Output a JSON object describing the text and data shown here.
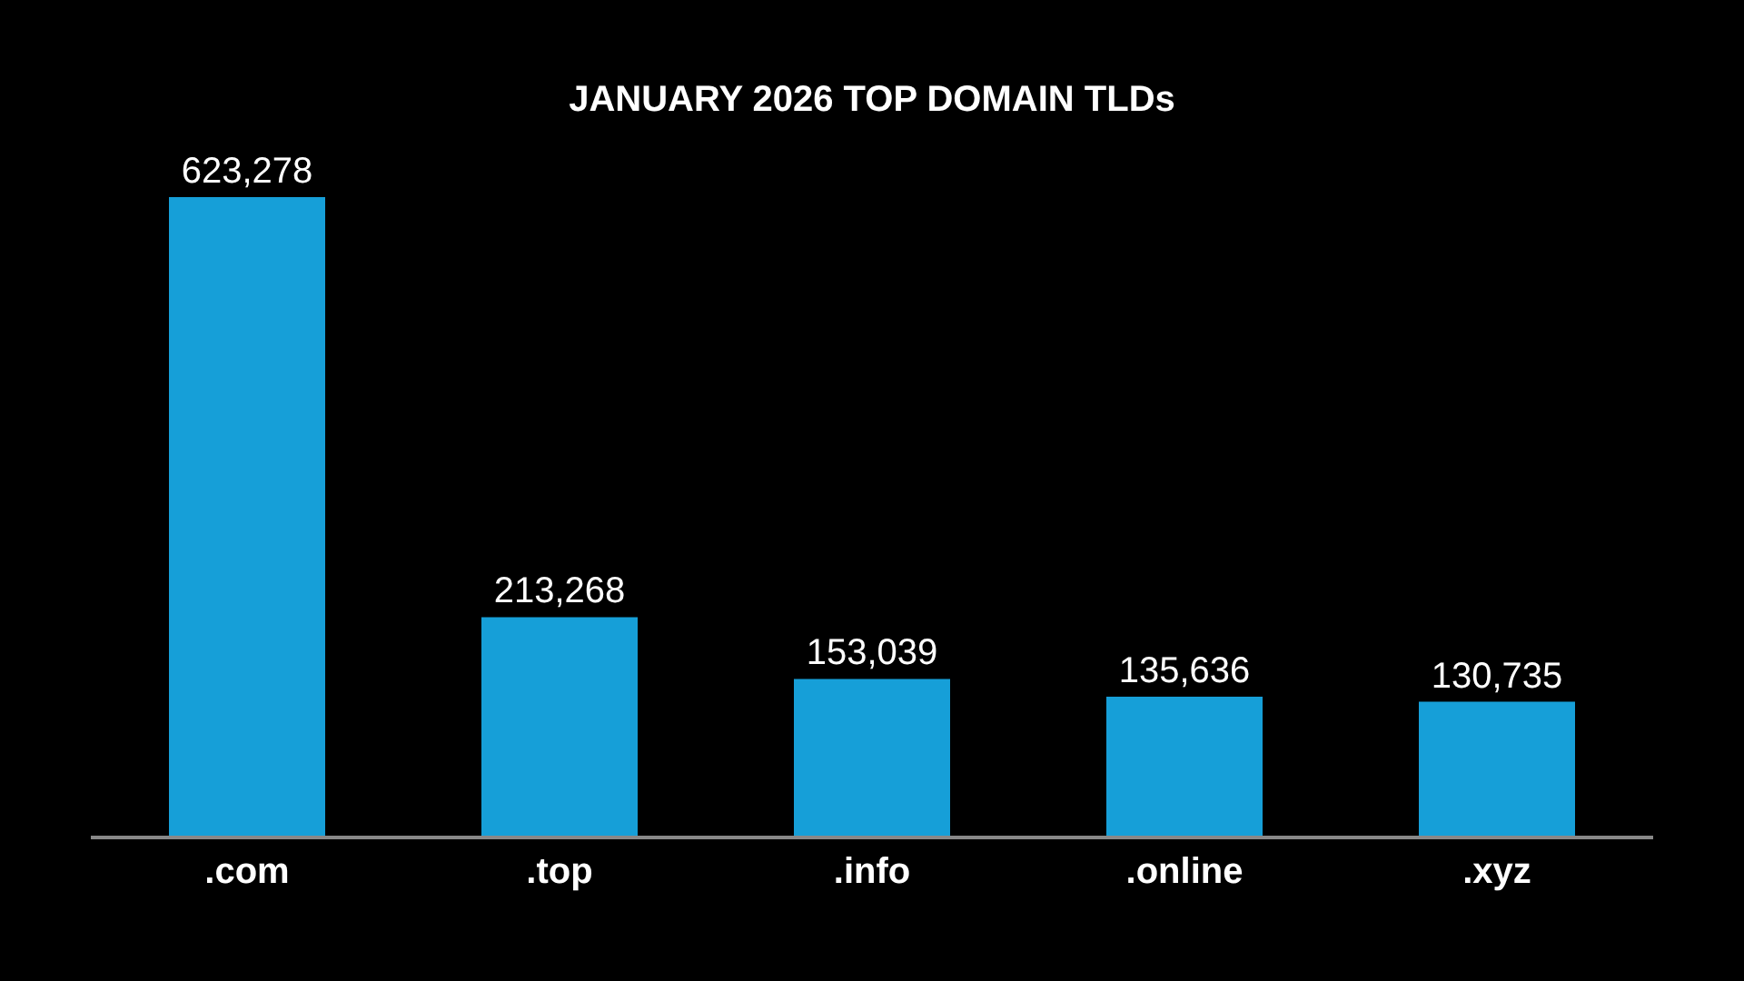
{
  "chart_data": {
    "type": "bar",
    "title": "JANUARY 2026 TOP DOMAIN TLDs",
    "categories": [
      ".com",
      ".top",
      ".info",
      ".online",
      ".xyz"
    ],
    "values": [
      623278,
      213268,
      153039,
      135636,
      130735
    ],
    "value_labels": [
      "623,278",
      "213,268",
      "153,039",
      "135,636",
      "130,735"
    ],
    "color": "#169fd8",
    "grid": false,
    "legend": false,
    "tick_labels": "x"
  }
}
